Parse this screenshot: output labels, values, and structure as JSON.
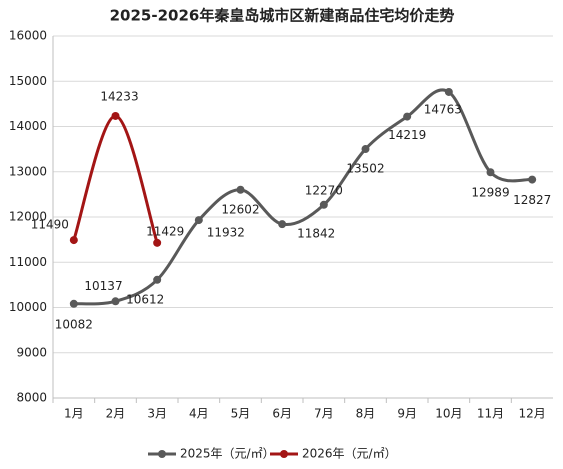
{
  "chart_data": {
    "type": "line",
    "title": "2025-2026年秦皇岛城市区新建商品住宅均价走势",
    "categories": [
      "1月",
      "2月",
      "3月",
      "4月",
      "5月",
      "6月",
      "7月",
      "8月",
      "9月",
      "10月",
      "11月",
      "12月"
    ],
    "series": [
      {
        "name": "2025年（元/㎡）",
        "color": "#595959",
        "values": [
          10082,
          10137,
          10612,
          11932,
          12602,
          11842,
          12270,
          13502,
          14219,
          14763,
          12989,
          12827
        ]
      },
      {
        "name": "2026年（元/㎡）",
        "color": "#a31515",
        "values": [
          11490,
          14233,
          11429,
          null,
          null,
          null,
          null,
          null,
          null,
          null,
          null,
          null
        ]
      }
    ],
    "ylim": [
      8000,
      16000
    ],
    "yticks": [
      8000,
      9000,
      10000,
      11000,
      12000,
      13000,
      14000,
      15000,
      16000
    ],
    "grid": true,
    "legend": "bottom"
  }
}
